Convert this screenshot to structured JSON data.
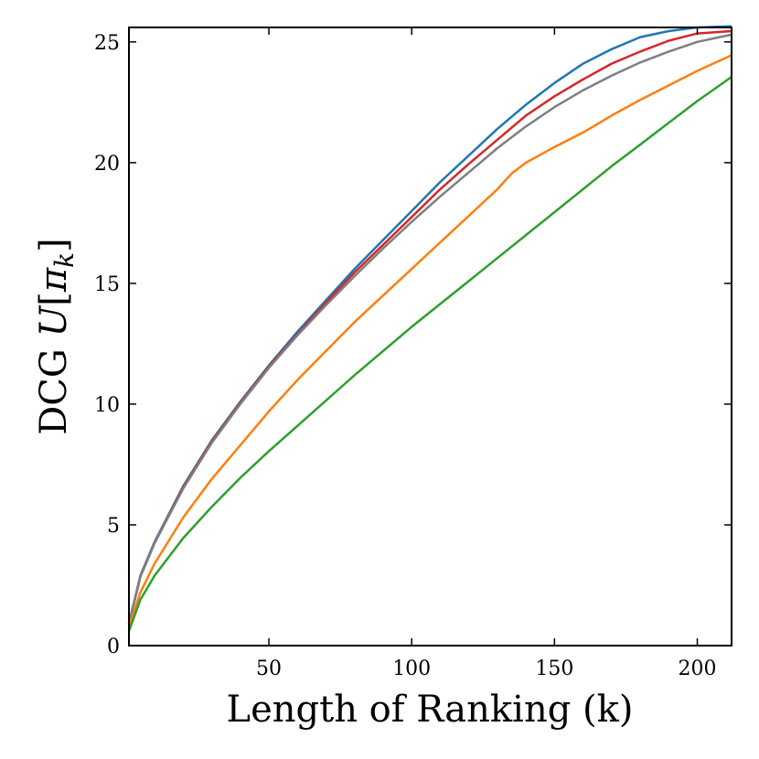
{
  "chart_data": {
    "type": "line",
    "title": "",
    "xlabel": "Length of Ranking (k)",
    "ylabel": {
      "prefix": "DCG ",
      "symbol": "U",
      "open": "[",
      "pi": "π",
      "sub": "k",
      "close": "]"
    },
    "xlim": [
      1,
      212
    ],
    "ylim": [
      0,
      25.6
    ],
    "xticks": [
      50,
      100,
      150,
      200
    ],
    "yticks": [
      0,
      5,
      10,
      15,
      20,
      25
    ],
    "grid": false,
    "legend": "none",
    "series": [
      {
        "color": "#1f77b4",
        "x": [
          1,
          5,
          10,
          20,
          30,
          40,
          50,
          60,
          70,
          80,
          90,
          100,
          110,
          120,
          130,
          140,
          150,
          160,
          170,
          180,
          190,
          200,
          212
        ],
        "y": [
          0.9,
          2.9,
          4.3,
          6.6,
          8.5,
          10.1,
          11.6,
          13.0,
          14.3,
          15.6,
          16.8,
          18.0,
          19.2,
          20.3,
          21.4,
          22.4,
          23.3,
          24.1,
          24.7,
          25.2,
          25.45,
          25.6,
          25.65
        ]
      },
      {
        "color": "#d62728",
        "x": [
          1,
          5,
          10,
          20,
          30,
          40,
          50,
          60,
          70,
          80,
          90,
          100,
          110,
          120,
          130,
          140,
          150,
          160,
          170,
          180,
          190,
          200,
          212
        ],
        "y": [
          0.9,
          2.85,
          4.25,
          6.55,
          8.45,
          10.05,
          11.55,
          12.9,
          14.2,
          15.45,
          16.6,
          17.75,
          18.9,
          19.95,
          20.95,
          21.95,
          22.75,
          23.45,
          24.1,
          24.6,
          25.05,
          25.35,
          25.45
        ]
      },
      {
        "color": "#7f7f7f",
        "x": [
          1,
          5,
          10,
          20,
          30,
          40,
          50,
          60,
          70,
          80,
          90,
          100,
          110,
          120,
          130,
          140,
          150,
          160,
          170,
          180,
          190,
          200,
          212
        ],
        "y": [
          0.9,
          2.85,
          4.25,
          6.5,
          8.4,
          10.0,
          11.5,
          12.85,
          14.1,
          15.3,
          16.45,
          17.55,
          18.6,
          19.6,
          20.6,
          21.5,
          22.3,
          23.0,
          23.6,
          24.15,
          24.6,
          25.0,
          25.3
        ]
      },
      {
        "color": "#ff7f0e",
        "x": [
          1,
          5,
          10,
          20,
          30,
          40,
          50,
          60,
          70,
          80,
          90,
          100,
          110,
          120,
          130,
          135,
          140,
          150,
          160,
          170,
          180,
          190,
          200,
          212
        ],
        "y": [
          0.75,
          2.2,
          3.4,
          5.3,
          6.9,
          8.3,
          9.7,
          11.0,
          12.2,
          13.4,
          14.5,
          15.6,
          16.7,
          17.8,
          18.9,
          19.55,
          20.0,
          20.65,
          21.25,
          21.95,
          22.6,
          23.2,
          23.8,
          24.45
        ]
      },
      {
        "color": "#2ca02c",
        "x": [
          1,
          5,
          10,
          20,
          30,
          40,
          50,
          60,
          70,
          80,
          90,
          100,
          110,
          120,
          130,
          140,
          150,
          160,
          170,
          180,
          190,
          200,
          212
        ],
        "y": [
          0.6,
          1.9,
          2.9,
          4.45,
          5.75,
          6.95,
          8.05,
          9.1,
          10.15,
          11.2,
          12.2,
          13.2,
          14.15,
          15.1,
          16.05,
          17.0,
          17.95,
          18.9,
          19.85,
          20.75,
          21.65,
          22.55,
          23.55
        ]
      }
    ]
  }
}
